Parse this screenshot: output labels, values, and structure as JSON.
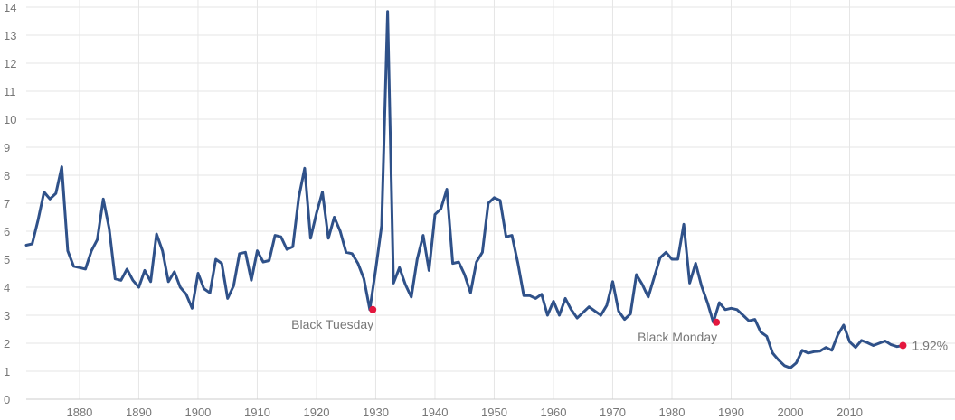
{
  "chart_data": {
    "type": "line",
    "title": "",
    "xlabel": "",
    "ylabel": "",
    "xlim": [
      1871,
      2020
    ],
    "ylim": [
      0,
      14
    ],
    "grid": true,
    "legend": "none",
    "line_color": "#2f5189",
    "marker_color": "#e4173e",
    "x_ticks": [
      1880,
      1890,
      1900,
      1910,
      1920,
      1930,
      1940,
      1950,
      1960,
      1970,
      1980,
      1990,
      2000,
      2010
    ],
    "x_tick_labels": [
      "1880",
      "1890",
      "1900",
      "1910",
      "1920",
      "1930",
      "1940",
      "1950",
      "1960",
      "1970",
      "1980",
      "1990",
      "2000",
      "2010"
    ],
    "y_ticks": [
      0,
      1,
      2,
      3,
      4,
      5,
      6,
      7,
      8,
      9,
      10,
      11,
      12,
      13,
      14
    ],
    "y_tick_labels": [
      "0",
      "1",
      "2",
      "3",
      "4",
      "5",
      "6",
      "7",
      "8",
      "9",
      "10",
      "11",
      "12",
      "13",
      "14"
    ],
    "series": [
      {
        "x": [
          1871,
          1872,
          1873,
          1874,
          1875,
          1876,
          1877,
          1878,
          1879,
          1880,
          1881,
          1882,
          1883,
          1884,
          1885,
          1886,
          1887,
          1888,
          1889,
          1890,
          1891,
          1892,
          1893,
          1894,
          1895,
          1896,
          1897,
          1898,
          1899,
          1900,
          1901,
          1902,
          1903,
          1904,
          1905,
          1906,
          1907,
          1908,
          1909,
          1910,
          1911,
          1912,
          1913,
          1914,
          1915,
          1916,
          1917,
          1918,
          1919,
          1920,
          1921,
          1922,
          1923,
          1924,
          1925,
          1926,
          1927,
          1928,
          1929,
          1930,
          1931,
          1932,
          1933,
          1934,
          1935,
          1936,
          1937,
          1938,
          1939,
          1940,
          1941,
          1942,
          1943,
          1944,
          1945,
          1946,
          1947,
          1948,
          1949,
          1950,
          1951,
          1952,
          1953,
          1954,
          1955,
          1956,
          1957,
          1958,
          1959,
          1960,
          1961,
          1962,
          1963,
          1964,
          1965,
          1966,
          1967,
          1968,
          1969,
          1970,
          1971,
          1972,
          1973,
          1974,
          1975,
          1976,
          1977,
          1978,
          1979,
          1980,
          1981,
          1982,
          1983,
          1984,
          1985,
          1986,
          1987,
          1988,
          1989,
          1990,
          1991,
          1992,
          1993,
          1994,
          1995,
          1996,
          1997,
          1998,
          1999,
          2000,
          2001,
          2002,
          2003,
          2004,
          2005,
          2006,
          2007,
          2008,
          2009,
          2010,
          2011,
          2012,
          2013,
          2014,
          2015,
          2016,
          2017,
          2018,
          2019
        ],
        "y": [
          5.5,
          5.55,
          6.4,
          7.4,
          7.15,
          7.35,
          8.3,
          5.3,
          4.75,
          4.7,
          4.65,
          5.3,
          5.7,
          7.15,
          6.1,
          4.3,
          4.25,
          4.65,
          4.25,
          4.0,
          4.6,
          4.2,
          5.9,
          5.3,
          4.2,
          4.55,
          4.0,
          3.75,
          3.25,
          4.5,
          3.95,
          3.8,
          5.0,
          4.85,
          3.6,
          4.05,
          5.2,
          5.25,
          4.25,
          5.3,
          4.9,
          4.95,
          5.85,
          5.8,
          5.35,
          5.45,
          7.2,
          8.25,
          5.75,
          6.65,
          7.4,
          5.75,
          6.5,
          6.0,
          5.25,
          5.2,
          4.85,
          4.3,
          3.2,
          4.65,
          6.2,
          13.85,
          4.15,
          4.7,
          4.1,
          3.65,
          5.0,
          5.85,
          4.6,
          6.6,
          6.8,
          7.5,
          4.85,
          4.9,
          4.45,
          3.8,
          4.9,
          5.25,
          7.0,
          7.2,
          7.1,
          5.8,
          5.85,
          4.85,
          3.7,
          3.7,
          3.6,
          3.75,
          3.0,
          3.5,
          3.0,
          3.6,
          3.2,
          2.9,
          3.1,
          3.3,
          3.15,
          3.0,
          3.35,
          4.2,
          3.15,
          2.85,
          3.05,
          4.45,
          4.1,
          3.65,
          4.35,
          5.05,
          5.25,
          5.0,
          5.0,
          6.25,
          4.15,
          4.85,
          4.05,
          3.45,
          2.75,
          3.45,
          3.2,
          3.25,
          3.2,
          3.0,
          2.8,
          2.85,
          2.4,
          2.25,
          1.65,
          1.4,
          1.2,
          1.12,
          1.3,
          1.75,
          1.65,
          1.7,
          1.72,
          1.85,
          1.75,
          2.3,
          2.65,
          2.05,
          1.85,
          2.1,
          2.02,
          1.92,
          2.0,
          2.08,
          1.95,
          1.88,
          1.92
        ]
      }
    ],
    "annotations": [
      {
        "x": 1929.5,
        "y": 3.2,
        "label": "Black Tuesday",
        "label_anchor": "end",
        "label_below": true
      },
      {
        "x": 1987.5,
        "y": 2.75,
        "label": "Black Monday",
        "label_anchor": "end",
        "label_below": true
      },
      {
        "x": 2019,
        "y": 1.92,
        "label": "1.92%",
        "label_anchor": "start",
        "label_below": false
      }
    ]
  }
}
